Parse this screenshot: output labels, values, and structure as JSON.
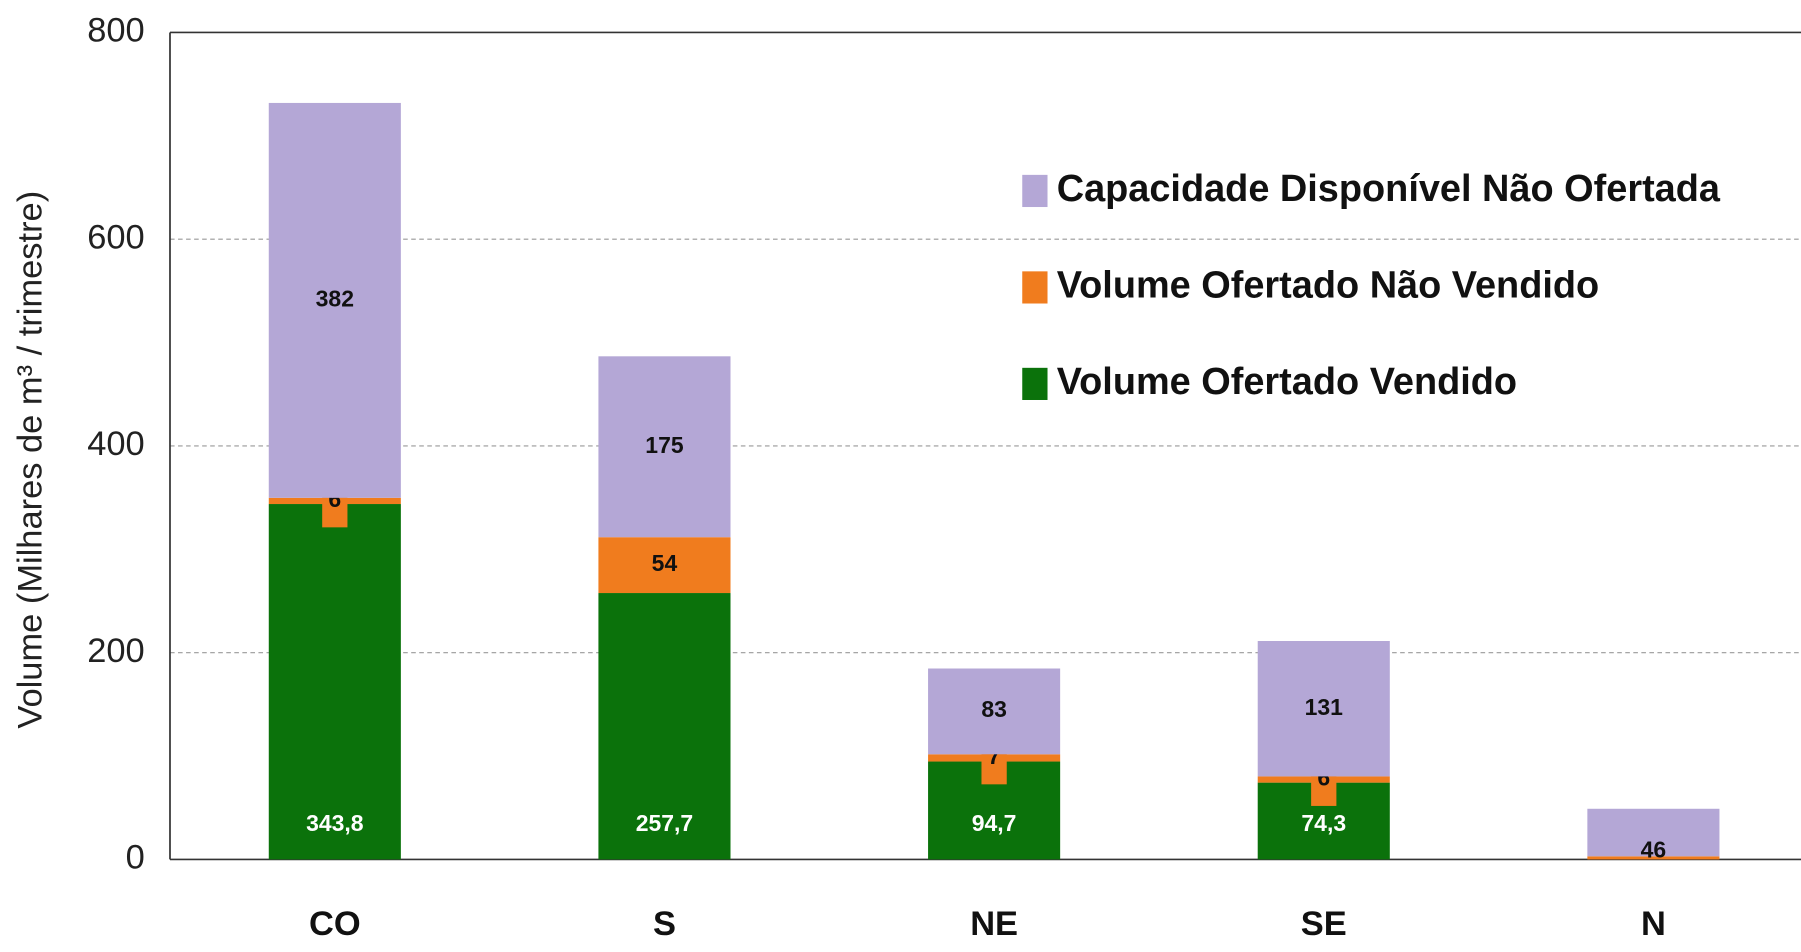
{
  "chart_data": {
    "type": "stacked_bar",
    "y_label": "Volume  (Milhares de m³ / trimestre)",
    "categories": [
      "CO",
      "S",
      "NE",
      "SE",
      "N"
    ],
    "series": [
      {
        "name": "Volume Ofertado Vendido",
        "color": "#0b720b",
        "values": [
          343.8,
          257.7,
          94.7,
          74.3,
          0
        ],
        "value_labels": [
          "343,8",
          "257,7",
          "94,7",
          "74,3",
          null
        ]
      },
      {
        "name": "Volume Ofertado Não Vendido",
        "color": "#f07c1e",
        "values": [
          6,
          54,
          7,
          6,
          3
        ],
        "value_labels": [
          "6",
          "54",
          "7",
          "6",
          null
        ]
      },
      {
        "name": "Capacidade Disponível Não Ofertada",
        "color": "#b4a7d6",
        "values": [
          382,
          175,
          83,
          131,
          46
        ]
      }
    ],
    "ylim": [
      0,
      800
    ],
    "yticks": [
      0,
      200,
      400,
      600,
      800
    ],
    "grid": true,
    "legend": "upper right"
  }
}
